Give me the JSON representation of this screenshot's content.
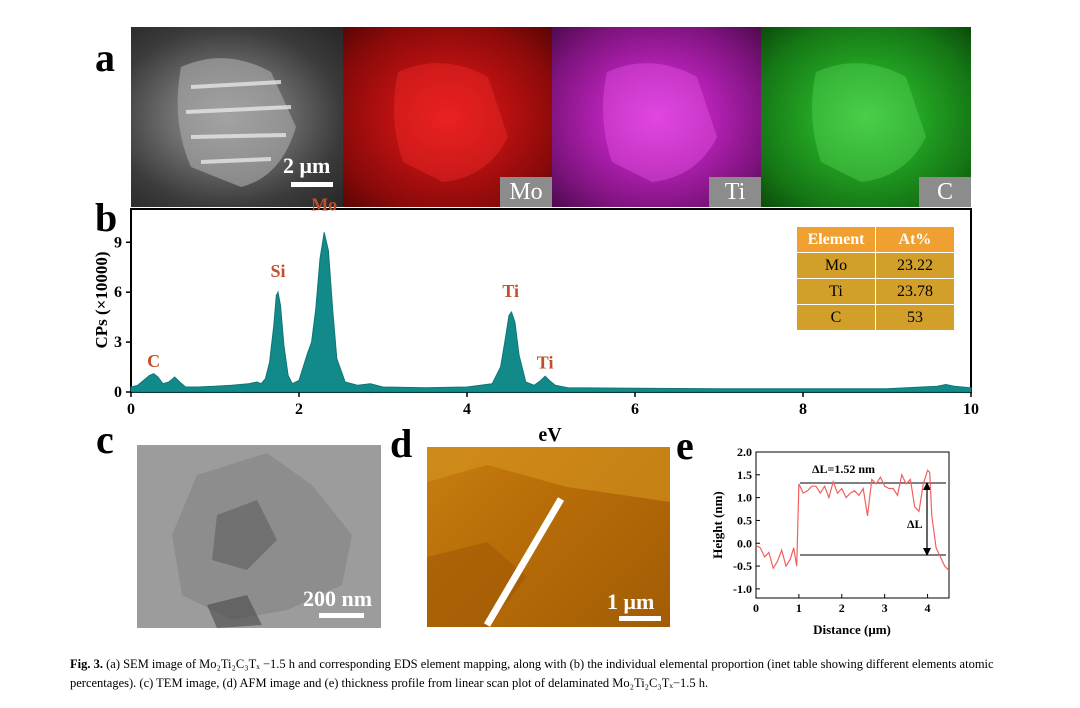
{
  "panels": {
    "a": "a",
    "b": "b",
    "c": "c",
    "d": "d",
    "e": "e"
  },
  "sem": {
    "scale_label": "2 μm"
  },
  "maps": [
    "Mo",
    "Ti",
    "C"
  ],
  "eds": {
    "ylabel": "CPs (×10000)",
    "xlabel": "eV",
    "peak_labels": [
      {
        "text": "C",
        "x": 0.27,
        "y": 1.5
      },
      {
        "text": "Si",
        "x": 1.75,
        "y": 6.9
      },
      {
        "text": "Mo",
        "x": 2.3,
        "y": 10.9
      },
      {
        "text": "Ti",
        "x": 4.52,
        "y": 5.7
      },
      {
        "text": "Ti",
        "x": 4.93,
        "y": 1.4
      }
    ]
  },
  "table": {
    "headers": [
      "Element",
      "At%"
    ],
    "rows": [
      [
        "Mo",
        "23.22"
      ],
      [
        "Ti",
        "23.78"
      ],
      [
        "C",
        "53"
      ]
    ]
  },
  "tem": {
    "scale_label": "200 nm"
  },
  "afm": {
    "scale_label": "1 μm"
  },
  "profile": {
    "ylabel": "Height (nm)",
    "xlabel": "Distance (μm)",
    "annotation": "ΔL=1.52 nm",
    "delta_label": "ΔL"
  },
  "chart_data": [
    {
      "type": "area",
      "title": "",
      "xlabel": "eV",
      "ylabel": "CPs (×10000)",
      "xlim": [
        0,
        10
      ],
      "ylim": [
        0,
        11
      ],
      "xticks": [
        0,
        2,
        4,
        6,
        8,
        10
      ],
      "yticks": [
        0,
        3,
        6,
        9
      ],
      "x": [
        0,
        0.08,
        0.15,
        0.22,
        0.27,
        0.32,
        0.38,
        0.45,
        0.52,
        0.58,
        0.65,
        0.8,
        1.0,
        1.2,
        1.4,
        1.5,
        1.55,
        1.6,
        1.65,
        1.7,
        1.73,
        1.75,
        1.78,
        1.82,
        1.87,
        1.92,
        2.0,
        2.05,
        2.1,
        2.15,
        2.2,
        2.25,
        2.3,
        2.35,
        2.4,
        2.45,
        2.55,
        2.7,
        2.85,
        3.0,
        3.5,
        4.0,
        4.3,
        4.4,
        4.45,
        4.5,
        4.53,
        4.57,
        4.62,
        4.7,
        4.8,
        4.88,
        4.93,
        4.98,
        5.05,
        5.2,
        6.0,
        7.0,
        8.0,
        9.0,
        9.6,
        9.7,
        9.8,
        10.0
      ],
      "y": [
        0.3,
        0.4,
        0.7,
        1.0,
        1.1,
        0.9,
        0.5,
        0.6,
        0.9,
        0.6,
        0.3,
        0.3,
        0.35,
        0.4,
        0.5,
        0.6,
        0.5,
        0.8,
        1.8,
        4.0,
        5.8,
        6.0,
        5.2,
        2.8,
        1.0,
        0.5,
        0.7,
        1.5,
        2.3,
        3.0,
        5.0,
        8.0,
        9.6,
        8.5,
        5.0,
        2.0,
        0.6,
        0.4,
        0.5,
        0.3,
        0.25,
        0.3,
        0.5,
        1.5,
        3.0,
        4.6,
        4.8,
        4.2,
        2.2,
        0.6,
        0.4,
        0.7,
        0.95,
        0.7,
        0.4,
        0.25,
        0.22,
        0.2,
        0.2,
        0.2,
        0.35,
        0.45,
        0.35,
        0.25
      ]
    },
    {
      "type": "line",
      "title": "",
      "xlabel": "Distance (μm)",
      "ylabel": "Height (nm)",
      "xlim": [
        0,
        4.5
      ],
      "ylim": [
        -1.2,
        2.0
      ],
      "xticks": [
        0,
        1,
        2,
        3,
        4
      ],
      "yticks": [
        -1.0,
        -0.5,
        0.0,
        0.5,
        1.0,
        1.5,
        2.0
      ],
      "x": [
        0,
        0.1,
        0.2,
        0.3,
        0.4,
        0.5,
        0.6,
        0.7,
        0.8,
        0.88,
        0.95,
        1.0,
        1.1,
        1.2,
        1.3,
        1.4,
        1.5,
        1.6,
        1.7,
        1.8,
        1.9,
        2.0,
        2.1,
        2.2,
        2.3,
        2.4,
        2.5,
        2.6,
        2.7,
        2.8,
        2.9,
        3.0,
        3.1,
        3.2,
        3.3,
        3.4,
        3.5,
        3.6,
        3.7,
        3.8,
        3.9,
        4.0,
        4.05,
        4.1,
        4.2,
        4.3,
        4.4,
        4.5
      ],
      "y": [
        -0.05,
        -0.1,
        -0.3,
        -0.2,
        -0.55,
        -0.4,
        -0.15,
        -0.5,
        -0.35,
        -0.1,
        -0.5,
        1.3,
        1.1,
        1.15,
        1.25,
        1.25,
        1.1,
        1.25,
        1.0,
        1.35,
        1.1,
        1.2,
        1.0,
        1.1,
        1.15,
        1.05,
        1.2,
        0.6,
        1.4,
        1.3,
        1.45,
        1.25,
        1.2,
        1.2,
        1.05,
        1.5,
        1.3,
        1.4,
        0.8,
        0.7,
        1.3,
        1.6,
        1.55,
        0.6,
        -0.1,
        -0.3,
        -0.5,
        -0.6
      ],
      "annotations": [
        "ΔL=1.52 nm",
        "ΔL"
      ]
    }
  ],
  "caption": {
    "fig": "Fig. 3.",
    "text": "(a) SEM image of Mo₂Ti₂C₃Tₓ −1.5 h and corresponding EDS element mapping, along with (b) the individual elemental proportion (inet table showing different elements atomic percentages). (c) TEM image, (d) AFM image and (e) thickness profile from linear scan plot of delaminated Mo₂Ti₂C₃Tₓ−1.5 h."
  }
}
